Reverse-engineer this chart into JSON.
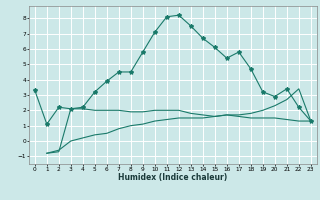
{
  "xlabel": "Humidex (Indice chaleur)",
  "background_color": "#cce8e8",
  "grid_color": "#ffffff",
  "line_color": "#1a7a6a",
  "xlim": [
    -0.5,
    23.5
  ],
  "ylim": [
    -1.5,
    8.8
  ],
  "xticks": [
    0,
    1,
    2,
    3,
    4,
    5,
    6,
    7,
    8,
    9,
    10,
    11,
    12,
    13,
    14,
    15,
    16,
    17,
    18,
    19,
    20,
    21,
    22,
    23
  ],
  "yticks": [
    -1,
    0,
    1,
    2,
    3,
    4,
    5,
    6,
    7,
    8
  ],
  "line1_x": [
    0,
    1,
    2,
    3,
    4,
    5,
    6,
    7,
    8,
    9,
    10,
    11,
    12,
    13,
    14,
    15,
    16,
    17,
    18,
    19,
    20,
    21,
    22,
    23
  ],
  "line1_y": [
    3.3,
    1.1,
    2.2,
    2.1,
    2.2,
    3.2,
    3.9,
    4.5,
    4.5,
    5.8,
    7.1,
    8.1,
    8.2,
    7.5,
    6.7,
    6.1,
    5.4,
    5.8,
    4.7,
    3.2,
    2.9,
    3.4,
    2.2,
    1.3
  ],
  "line2_x": [
    1,
    2,
    3,
    4,
    5,
    6,
    7,
    8,
    9,
    10,
    11,
    12,
    13,
    14,
    15,
    16,
    17,
    18,
    19,
    20,
    21,
    22,
    23
  ],
  "line2_y": [
    -0.8,
    -0.7,
    2.1,
    2.1,
    2.0,
    2.0,
    2.0,
    1.9,
    1.9,
    2.0,
    2.0,
    2.0,
    1.8,
    1.7,
    1.6,
    1.7,
    1.6,
    1.5,
    1.5,
    1.5,
    1.4,
    1.3,
    1.3
  ],
  "line3_x": [
    1,
    2,
    3,
    4,
    5,
    6,
    7,
    8,
    9,
    10,
    11,
    12,
    13,
    14,
    15,
    16,
    17,
    18,
    19,
    20,
    21,
    22,
    23
  ],
  "line3_y": [
    -0.8,
    -0.6,
    0.0,
    0.2,
    0.4,
    0.5,
    0.8,
    1.0,
    1.1,
    1.3,
    1.4,
    1.5,
    1.5,
    1.5,
    1.6,
    1.7,
    1.7,
    1.8,
    2.0,
    2.3,
    2.7,
    3.4,
    1.3
  ]
}
